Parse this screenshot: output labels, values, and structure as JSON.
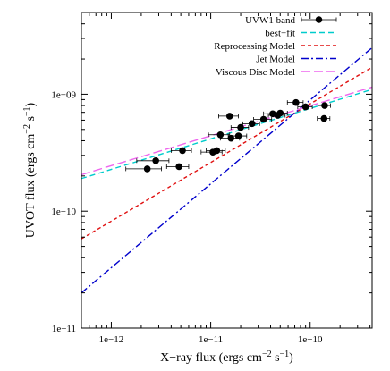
{
  "chart_data": {
    "type": "scatter",
    "x_scale": "log",
    "y_scale": "log",
    "xlim": [
      5e-13,
      4.2e-10
    ],
    "ylim": [
      1e-11,
      5e-09
    ],
    "xlabel_main": "X−ray flux (ergs cm",
    "xlabel_exp1": "−2",
    "xlabel_mid": " s",
    "xlabel_exp2": "−1",
    "xlabel_end": ")",
    "ylabel_main": "UVOT flux (ergs cm",
    "ylabel_exp1": "−2",
    "ylabel_mid": " s",
    "ylabel_exp2": "−1",
    "ylabel_end": ")",
    "x_ticks": [
      {
        "value": 1e-12,
        "label": "1e−12"
      },
      {
        "value": 1e-11,
        "label": "1e−11"
      },
      {
        "value": 1e-10,
        "label": "1e−10"
      }
    ],
    "y_ticks": [
      {
        "value": 1e-11,
        "label": "1e−11"
      },
      {
        "value": 1e-10,
        "label": "1e−10"
      },
      {
        "value": 1e-09,
        "label": "1e−09"
      }
    ],
    "legend_position": "top-right",
    "series": [
      {
        "name": "UVW1 band",
        "kind": "points",
        "color": "#000000",
        "points": [
          {
            "x": 2.3e-12,
            "y": 2.3e-10,
            "xerr": 9e-13
          },
          {
            "x": 2.8e-12,
            "y": 2.7e-10,
            "xerr": 1e-12
          },
          {
            "x": 4.8e-12,
            "y": 2.4e-10,
            "xerr": 1.2e-12
          },
          {
            "x": 5.2e-12,
            "y": 3.3e-10,
            "xerr": 1.2e-12
          },
          {
            "x": 1.05e-11,
            "y": 3.2e-10,
            "xerr": 2.5e-12
          },
          {
            "x": 1.15e-11,
            "y": 3.3e-10,
            "xerr": 2.5e-12
          },
          {
            "x": 1.25e-11,
            "y": 4.5e-10,
            "xerr": 3e-12
          },
          {
            "x": 1.55e-11,
            "y": 6.5e-10,
            "xerr": 3.5e-12
          },
          {
            "x": 1.6e-11,
            "y": 4.2e-10,
            "xerr": 3.5e-12
          },
          {
            "x": 1.9e-11,
            "y": 4.4e-10,
            "xerr": 4e-12
          },
          {
            "x": 2e-11,
            "y": 5.2e-10,
            "xerr": 4e-12
          },
          {
            "x": 2.6e-11,
            "y": 5.6e-10,
            "xerr": 5e-12
          },
          {
            "x": 3.4e-11,
            "y": 6.1e-10,
            "xerr": 7e-12
          },
          {
            "x": 4.2e-11,
            "y": 6.8e-10,
            "xerr": 8e-12
          },
          {
            "x": 4.7e-11,
            "y": 6.6e-10,
            "xerr": 9e-12
          },
          {
            "x": 5e-11,
            "y": 6.9e-10,
            "xerr": 9e-12
          },
          {
            "x": 7.2e-11,
            "y": 8.5e-10,
            "xerr": 1.3e-11
          },
          {
            "x": 9e-11,
            "y": 7.8e-10,
            "xerr": 1.5e-11
          },
          {
            "x": 1.38e-10,
            "y": 6.2e-10,
            "xerr": 2e-11
          },
          {
            "x": 1.4e-10,
            "y": 8e-10,
            "xerr": 2e-11
          }
        ]
      },
      {
        "name": "best−fit",
        "kind": "line",
        "color": "#00cccc",
        "dash": "6,4",
        "x": [
          5e-13,
          4.2e-10
        ],
        "y": [
          1.9e-10,
          1.1e-09
        ]
      },
      {
        "name": "Reprocessing Model",
        "kind": "line",
        "color": "#e01010",
        "dash": "4,3",
        "x": [
          5e-13,
          4.2e-10
        ],
        "y": [
          5.8e-11,
          1.7e-09
        ]
      },
      {
        "name": "Jet Model",
        "kind": "line",
        "color": "#0000cc",
        "dash": "8,3,2,3",
        "x": [
          5e-13,
          4.2e-10
        ],
        "y": [
          2e-11,
          2.5e-09
        ]
      },
      {
        "name": "Viscous Disc Model",
        "kind": "line",
        "color": "#ee66ee",
        "dash": "10,4",
        "x": [
          5e-13,
          4.2e-10
        ],
        "y": [
          2.05e-10,
          1.15e-09
        ]
      }
    ]
  }
}
